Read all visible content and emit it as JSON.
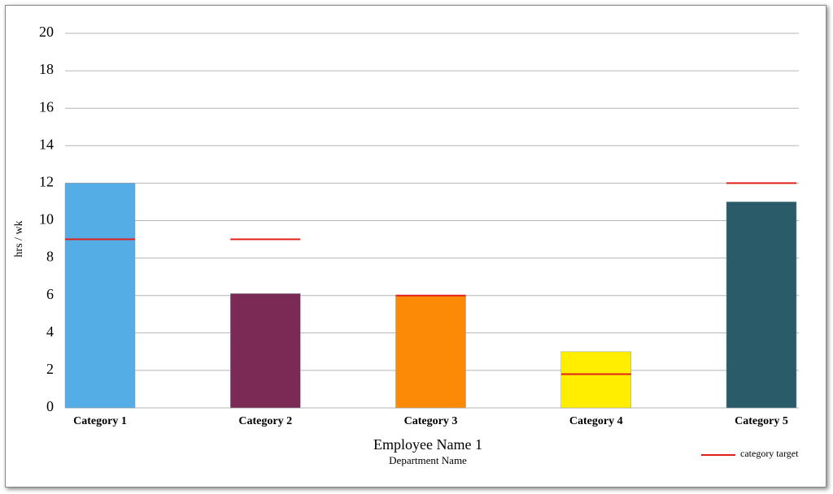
{
  "chart_data": {
    "type": "bar",
    "title": "Employee Name 1",
    "subtitle": "Department Name",
    "y_label": "hrs / wk",
    "categories": [
      "Category 1",
      "Category 2",
      "Category 3",
      "Category 4",
      "Category 5"
    ],
    "values": [
      12,
      6.1,
      6,
      3,
      11
    ],
    "colors": [
      "#55ade6",
      "#7b2a55",
      "#fd8a07",
      "#ffee00",
      "#2a5b69"
    ],
    "target": {
      "name": "category target",
      "color": "#e0201b",
      "values": [
        9,
        9,
        6,
        1.8,
        12
      ]
    },
    "ylim": [
      0,
      20
    ],
    "yticks": [
      0,
      2,
      4,
      6,
      8,
      10,
      12,
      14,
      16,
      18,
      20
    ],
    "grid": true,
    "legend": "bottom-right"
  }
}
